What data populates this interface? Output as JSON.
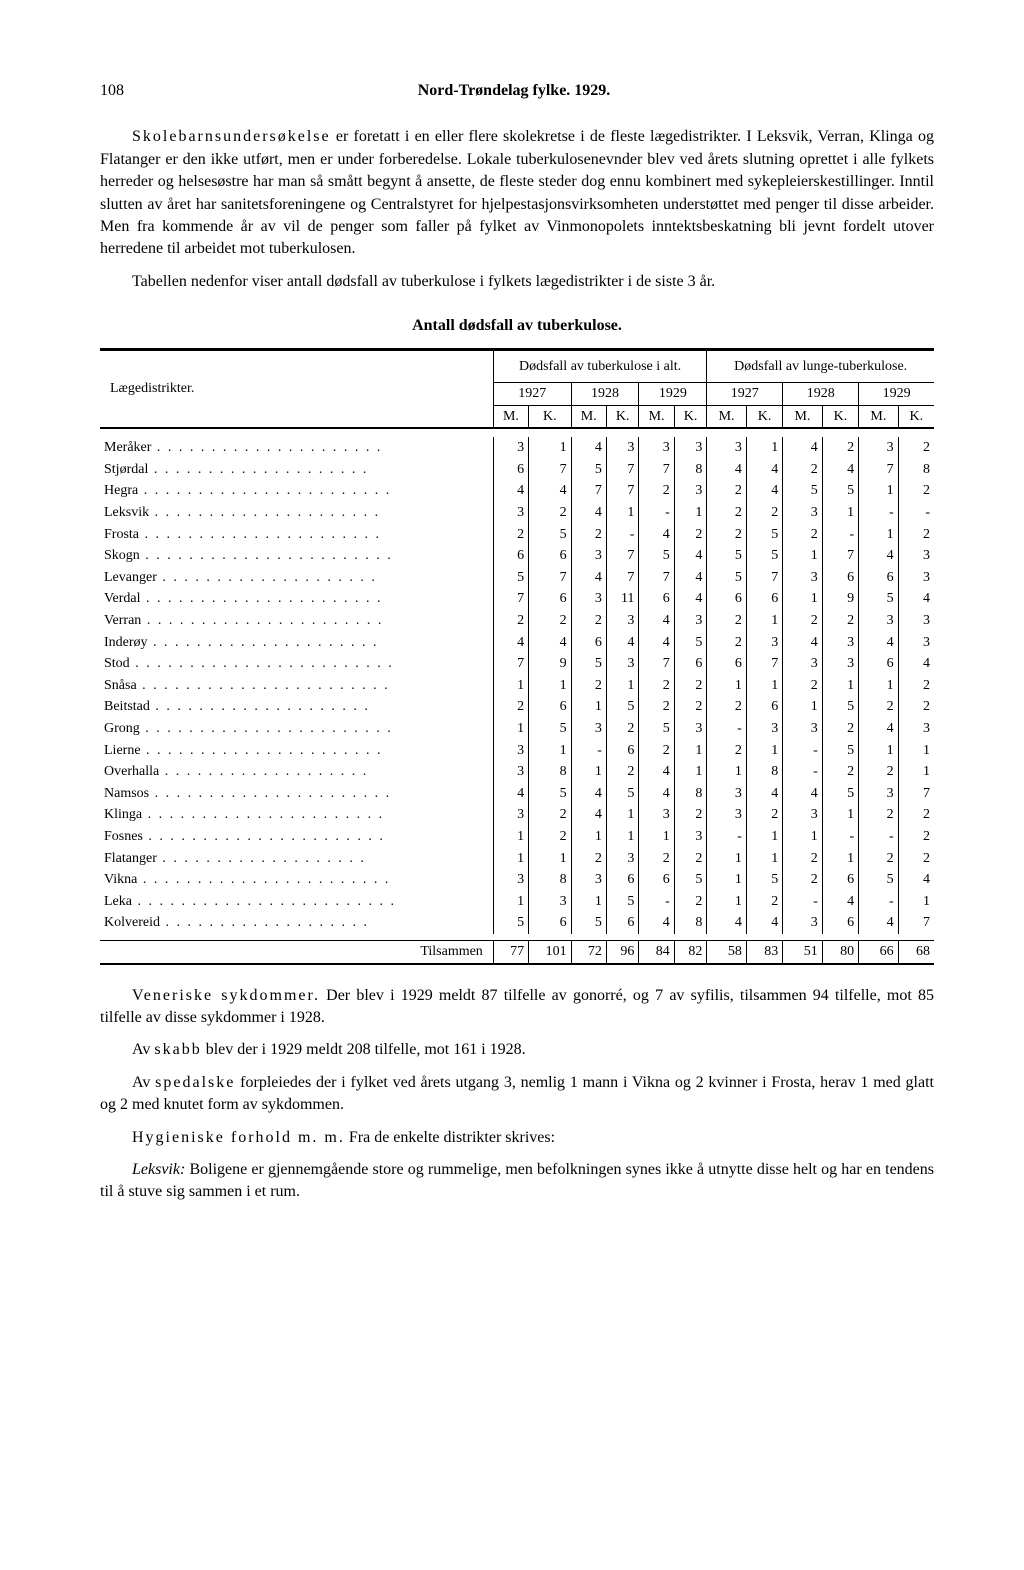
{
  "page_number": "108",
  "header_title": "Nord-Trøndelag fylke. 1929.",
  "para1_lead": "Skolebarnsundersøkelse",
  "para1_rest": " er foretatt i en eller flere skolekretse i de fleste lægedistrikter. I Leksvik, Verran, Klinga og Flatanger er den ikke utført, men er under forberedelse. Lokale tuberkulosenevnder blev ved årets slutning oprettet i alle fylkets herreder og helsesøstre har man så smått begynt å ansette, de fleste steder dog ennu kombinert med sykepleierskestillinger. Inntil slutten av året har sanitetsforeningene og Centralstyret for hjelpestasjonsvirksomheten understøttet med penger til disse arbeider. Men fra kommende år av vil de penger som faller på fylket av Vinmonopolets inntektsbeskatning bli jevnt fordelt utover herredene til arbeidet mot tuberkulosen.",
  "para2": "Tabellen nedenfor viser antall dødsfall av tuberkulose i fylkets lægedistrikter i de siste 3 år.",
  "table_title": "Antall dødsfall av tuberkulose.",
  "col_group1": "Dødsfall av tuberkulose i alt.",
  "col_group2": "Dødsfall av lunge-tuberkulose.",
  "row_header": "Lægedistrikter.",
  "years": [
    "1927",
    "1928",
    "1929"
  ],
  "mk": [
    "M.",
    "K."
  ],
  "districts": [
    {
      "name": "Meråker",
      "v": [
        "3",
        "1",
        "4",
        "3",
        "3",
        "3",
        "3",
        "1",
        "4",
        "2",
        "3",
        "2"
      ]
    },
    {
      "name": "Stjørdal",
      "v": [
        "6",
        "7",
        "5",
        "7",
        "7",
        "8",
        "4",
        "4",
        "2",
        "4",
        "7",
        "8"
      ]
    },
    {
      "name": "Hegra",
      "v": [
        "4",
        "4",
        "7",
        "7",
        "2",
        "3",
        "2",
        "4",
        "5",
        "5",
        "1",
        "2"
      ]
    },
    {
      "name": "Leksvik",
      "v": [
        "3",
        "2",
        "4",
        "1",
        "-",
        "1",
        "2",
        "2",
        "3",
        "1",
        "-",
        "-"
      ]
    },
    {
      "name": "Frosta",
      "v": [
        "2",
        "5",
        "2",
        "-",
        "4",
        "2",
        "2",
        "5",
        "2",
        "-",
        "1",
        "2"
      ]
    },
    {
      "name": "Skogn",
      "v": [
        "6",
        "6",
        "3",
        "7",
        "5",
        "4",
        "5",
        "5",
        "1",
        "7",
        "4",
        "3"
      ]
    },
    {
      "name": "Levanger",
      "v": [
        "5",
        "7",
        "4",
        "7",
        "7",
        "4",
        "5",
        "7",
        "3",
        "6",
        "6",
        "3"
      ]
    },
    {
      "name": "Verdal",
      "v": [
        "7",
        "6",
        "3",
        "11",
        "6",
        "4",
        "6",
        "6",
        "1",
        "9",
        "5",
        "4"
      ]
    },
    {
      "name": "Verran",
      "v": [
        "2",
        "2",
        "2",
        "3",
        "4",
        "3",
        "2",
        "1",
        "2",
        "2",
        "3",
        "3"
      ]
    },
    {
      "name": "Inderøy",
      "v": [
        "4",
        "4",
        "6",
        "4",
        "4",
        "5",
        "2",
        "3",
        "4",
        "3",
        "4",
        "3"
      ]
    },
    {
      "name": "Stod",
      "v": [
        "7",
        "9",
        "5",
        "3",
        "7",
        "6",
        "6",
        "7",
        "3",
        "3",
        "6",
        "4"
      ]
    },
    {
      "name": "Snåsa",
      "v": [
        "1",
        "1",
        "2",
        "1",
        "2",
        "2",
        "1",
        "1",
        "2",
        "1",
        "1",
        "2"
      ]
    },
    {
      "name": "Beitstad",
      "v": [
        "2",
        "6",
        "1",
        "5",
        "2",
        "2",
        "2",
        "6",
        "1",
        "5",
        "2",
        "2"
      ]
    },
    {
      "name": "Grong",
      "v": [
        "1",
        "5",
        "3",
        "2",
        "5",
        "3",
        "-",
        "3",
        "3",
        "2",
        "4",
        "3"
      ]
    },
    {
      "name": "Lierne",
      "v": [
        "3",
        "1",
        "-",
        "6",
        "2",
        "1",
        "2",
        "1",
        "-",
        "5",
        "1",
        "1"
      ]
    },
    {
      "name": "Overhalla",
      "v": [
        "3",
        "8",
        "1",
        "2",
        "4",
        "1",
        "1",
        "8",
        "-",
        "2",
        "2",
        "1"
      ]
    },
    {
      "name": "Namsos",
      "v": [
        "4",
        "5",
        "4",
        "5",
        "4",
        "8",
        "3",
        "4",
        "4",
        "5",
        "3",
        "7"
      ]
    },
    {
      "name": "Klinga",
      "v": [
        "3",
        "2",
        "4",
        "1",
        "3",
        "2",
        "3",
        "2",
        "3",
        "1",
        "2",
        "2"
      ]
    },
    {
      "name": "Fosnes",
      "v": [
        "1",
        "2",
        "1",
        "1",
        "1",
        "3",
        "-",
        "1",
        "1",
        "-",
        "-",
        "2"
      ]
    },
    {
      "name": "Flatanger",
      "v": [
        "1",
        "1",
        "2",
        "3",
        "2",
        "2",
        "1",
        "1",
        "2",
        "1",
        "2",
        "2"
      ]
    },
    {
      "name": "Vikna",
      "v": [
        "3",
        "8",
        "3",
        "6",
        "6",
        "5",
        "1",
        "5",
        "2",
        "6",
        "5",
        "4"
      ]
    },
    {
      "name": "Leka",
      "v": [
        "1",
        "3",
        "1",
        "5",
        "-",
        "2",
        "1",
        "2",
        "-",
        "4",
        "-",
        "1"
      ]
    },
    {
      "name": "Kolvereid",
      "v": [
        "5",
        "6",
        "5",
        "6",
        "4",
        "8",
        "4",
        "4",
        "3",
        "6",
        "4",
        "7"
      ]
    }
  ],
  "total_label": "Tilsammen",
  "totals": [
    "77",
    "101",
    "72",
    "96",
    "84",
    "82",
    "58",
    "83",
    "51",
    "80",
    "66",
    "68"
  ],
  "para3_lead": "Veneriske sykdommer.",
  "para3_rest": " Der blev i 1929 meldt 87 tilfelle av gonorré, og 7 av syfilis, tilsammen 94 tilfelle, mot 85 tilfelle av disse sykdommer i 1928.",
  "para4_pre": "Av ",
  "para4_lead": "skabb",
  "para4_rest": " blev der i 1929 meldt 208 tilfelle, mot 161 i 1928.",
  "para5_pre": "Av ",
  "para5_lead": "spedalske",
  "para5_rest": " forpleiedes der i fylket ved årets utgang 3, nemlig 1 mann i Vikna og 2 kvinner i Frosta, herav 1 med glatt og 2 med knutet form av sykdommen.",
  "para6_lead": "Hygieniske forhold m. m.",
  "para6_rest1": " Fra de enkelte distrikter skrives:",
  "para6_it": "Leksvik:",
  "para6_rest2": " Boligene er gjennemgående store og rummelige, men befolkningen synes ikke å utnytte disse helt og har en tendens til å stuve sig sammen i et rum."
}
